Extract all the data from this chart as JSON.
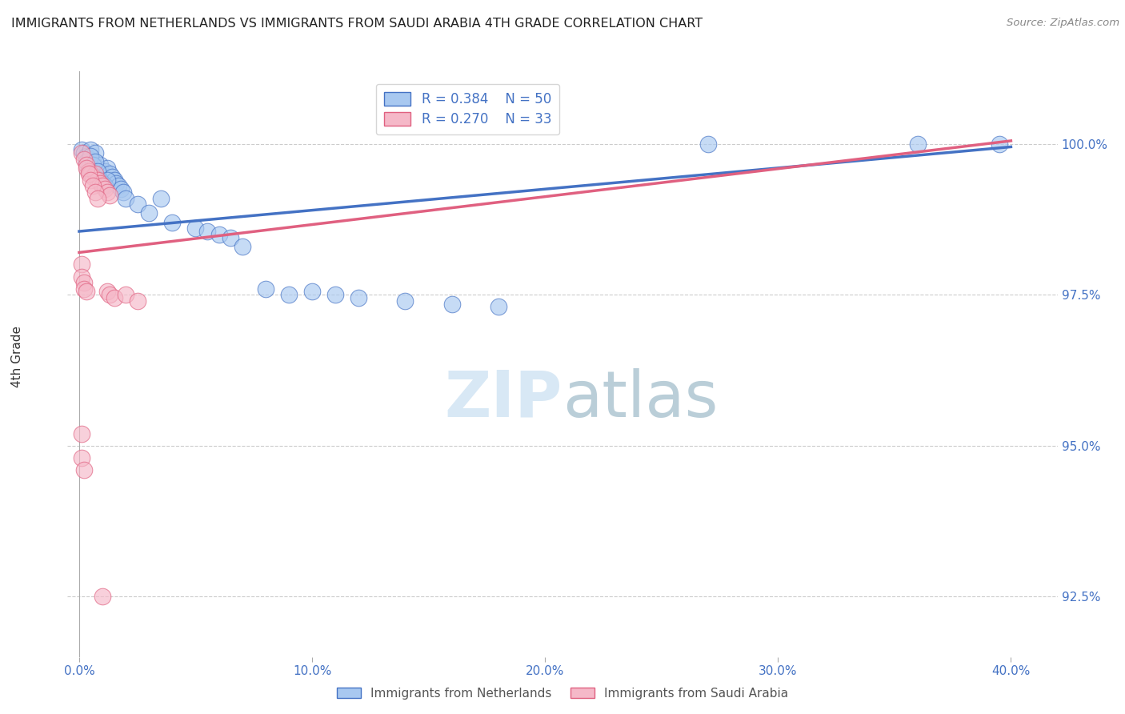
{
  "title": "IMMIGRANTS FROM NETHERLANDS VS IMMIGRANTS FROM SAUDI ARABIA 4TH GRADE CORRELATION CHART",
  "source": "Source: ZipAtlas.com",
  "ylabel": "4th Grade",
  "yaxis_ticks": [
    92.5,
    95.0,
    97.5,
    100.0
  ],
  "yaxis_labels": [
    "92.5%",
    "95.0%",
    "97.5%",
    "100.0%"
  ],
  "xaxis_ticks": [
    0.0,
    0.1,
    0.2,
    0.3,
    0.4
  ],
  "xaxis_labels": [
    "0.0%",
    "10.0%",
    "20.0%",
    "30.0%",
    "40.0%"
  ],
  "ymin": 91.5,
  "ymax": 101.2,
  "xmin": -0.005,
  "xmax": 0.42,
  "legend_netherlands": "Immigrants from Netherlands",
  "legend_saudi": "Immigrants from Saudi Arabia",
  "R_netherlands": 0.384,
  "N_netherlands": 50,
  "R_saudi": 0.27,
  "N_saudi": 33,
  "color_netherlands": "#a8c8f0",
  "color_saudi": "#f5b8c8",
  "line_color_netherlands": "#4472c4",
  "line_color_saudi": "#e06080",
  "watermark_zip_color": "#dce8f5",
  "watermark_atlas_color": "#c8d8e8",
  "title_color": "#222222",
  "axis_label_color": "#4472c4",
  "grid_color": "#cccccc",
  "nl_trend_x0": 0.0,
  "nl_trend_y0": 98.55,
  "nl_trend_x1": 0.4,
  "nl_trend_y1": 99.95,
  "sa_trend_x0": 0.0,
  "sa_trend_y0": 98.2,
  "sa_trend_x1": 0.4,
  "sa_trend_y1": 100.05,
  "nl_x": [
    0.001,
    0.002,
    0.003,
    0.004,
    0.005,
    0.006,
    0.007,
    0.008,
    0.009,
    0.01,
    0.011,
    0.012,
    0.013,
    0.014,
    0.015,
    0.016,
    0.017,
    0.018,
    0.019,
    0.02,
    0.003,
    0.004,
    0.005,
    0.006,
    0.007,
    0.008,
    0.009,
    0.01,
    0.011,
    0.012,
    0.025,
    0.03,
    0.035,
    0.04,
    0.05,
    0.055,
    0.06,
    0.065,
    0.07,
    0.08,
    0.09,
    0.1,
    0.11,
    0.12,
    0.14,
    0.16,
    0.18,
    0.27,
    0.36,
    0.395
  ],
  "nl_y": [
    99.9,
    99.85,
    99.8,
    99.75,
    99.9,
    99.7,
    99.85,
    99.6,
    99.65,
    99.5,
    99.55,
    99.6,
    99.5,
    99.45,
    99.4,
    99.35,
    99.3,
    99.25,
    99.2,
    99.1,
    99.7,
    99.6,
    99.8,
    99.65,
    99.7,
    99.55,
    99.4,
    99.35,
    99.3,
    99.4,
    99.0,
    98.85,
    99.1,
    98.7,
    98.6,
    98.55,
    98.5,
    98.45,
    98.3,
    97.6,
    97.5,
    97.55,
    97.5,
    97.45,
    97.4,
    97.35,
    97.3,
    100.0,
    100.0,
    100.0
  ],
  "sa_x": [
    0.001,
    0.002,
    0.003,
    0.004,
    0.005,
    0.006,
    0.007,
    0.008,
    0.009,
    0.01,
    0.011,
    0.012,
    0.013,
    0.003,
    0.004,
    0.005,
    0.006,
    0.007,
    0.008,
    0.012,
    0.013,
    0.015,
    0.02,
    0.025,
    0.001,
    0.001,
    0.002,
    0.002,
    0.003,
    0.001,
    0.001,
    0.002,
    0.01
  ],
  "sa_y": [
    99.85,
    99.75,
    99.65,
    99.55,
    99.5,
    99.45,
    99.5,
    99.4,
    99.35,
    99.3,
    99.25,
    99.2,
    99.15,
    99.6,
    99.5,
    99.4,
    99.3,
    99.2,
    99.1,
    97.55,
    97.5,
    97.45,
    97.5,
    97.4,
    98.0,
    97.8,
    97.7,
    97.6,
    97.55,
    95.2,
    94.8,
    94.6,
    92.5
  ]
}
